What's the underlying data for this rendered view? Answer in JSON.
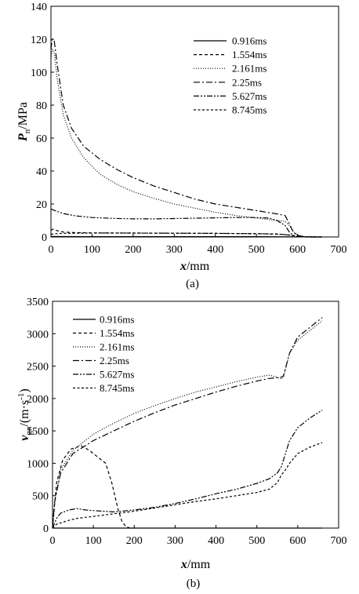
{
  "figure": {
    "panel_labels": [
      "(a)",
      "(b)"
    ]
  },
  "chart_data": [
    {
      "type": "line",
      "panel": "(a)",
      "xlabel_italic": "x",
      "xlabel_unit": "/mm",
      "ylabel_italic": "P",
      "ylabel_sub": "n",
      "ylabel_unit": "/MPa",
      "xlim": [
        0,
        700
      ],
      "ylim": [
        0,
        140
      ],
      "xticks": [
        0,
        100,
        200,
        300,
        400,
        500,
        600,
        700
      ],
      "yticks": [
        0,
        20,
        40,
        60,
        80,
        100,
        120,
        140
      ],
      "xtick_labels": [
        "0",
        "100",
        "200",
        "300",
        "400",
        "500",
        "600",
        "700"
      ],
      "ytick_labels": [
        "0",
        "20",
        "40",
        "60",
        "80",
        "100",
        "120",
        "140"
      ],
      "legend_position": "top-right",
      "grid": false,
      "series": [
        {
          "name": "0.916ms",
          "dash": "solid",
          "x": [
            0,
            100,
            200,
            300,
            400,
            500,
            600,
            660
          ],
          "y": [
            0.3,
            0.2,
            0.2,
            0.2,
            0.2,
            0.2,
            0.1,
            0
          ]
        },
        {
          "name": "1.554ms",
          "dash": "dash",
          "x": [
            0,
            5,
            15,
            30,
            60,
            100,
            200,
            300,
            400,
            500,
            560,
            590,
            610,
            660
          ],
          "y": [
            4,
            4.8,
            3.8,
            3,
            2.6,
            2.5,
            2.4,
            2.3,
            2.2,
            2,
            1.6,
            0.8,
            0.2,
            0
          ]
        },
        {
          "name": "2.161ms",
          "dash": "dot",
          "x": [
            0,
            3,
            8,
            15,
            30,
            50,
            80,
            120,
            160,
            200,
            250,
            300,
            350,
            400,
            450,
            500,
            550,
            570,
            580,
            590,
            600,
            620,
            660
          ],
          "y": [
            108,
            114,
            112,
            96,
            74,
            60,
            48,
            38,
            32,
            27.5,
            23.5,
            20,
            17.5,
            15,
            13,
            11.5,
            10,
            9.5,
            7,
            3,
            1,
            0,
            0
          ]
        },
        {
          "name": "2.25ms",
          "dash": "dashdot",
          "x": [
            0,
            3,
            8,
            15,
            30,
            50,
            80,
            120,
            160,
            200,
            250,
            300,
            350,
            400,
            450,
            500,
            550,
            570,
            580,
            590,
            600,
            620,
            660
          ],
          "y": [
            114,
            120,
            119,
            105,
            80,
            66,
            55,
            47,
            41,
            36,
            31,
            27,
            23,
            20,
            18,
            16,
            14,
            13,
            8,
            3,
            1,
            0,
            0
          ]
        },
        {
          "name": "5.627ms",
          "dash": "dashdotdot",
          "x": [
            0,
            10,
            30,
            60,
            100,
            150,
            200,
            250,
            300,
            350,
            400,
            450,
            500,
            530,
            550,
            570,
            580,
            590,
            600,
            620,
            660
          ],
          "y": [
            17,
            16,
            14.2,
            12.8,
            11.8,
            11.3,
            11,
            11,
            11.2,
            11.4,
            11.6,
            11.8,
            11.8,
            11.5,
            10,
            7,
            3,
            1,
            0.2,
            0,
            0
          ]
        },
        {
          "name": "8.745ms",
          "dash": "shortdash",
          "x": [
            0,
            10,
            30,
            60,
            100,
            200,
            300,
            400,
            500,
            550,
            580,
            600,
            620,
            660
          ],
          "y": [
            1.6,
            2,
            2.2,
            2.3,
            2.4,
            2.4,
            2.3,
            2.2,
            2,
            1.8,
            1.2,
            0.4,
            0.1,
            0
          ]
        }
      ]
    },
    {
      "type": "line",
      "panel": "(b)",
      "xlabel_italic": "x",
      "xlabel_unit": "/mm",
      "ylabel_italic": "v",
      "ylabel_sub": "gn",
      "ylabel_unit": "/(m·s",
      "ylabel_sup": "-1",
      "ylabel_close": ")",
      "xlim": [
        0,
        700
      ],
      "ylim": [
        0,
        3500
      ],
      "xticks": [
        0,
        100,
        200,
        300,
        400,
        500,
        600,
        700
      ],
      "yticks": [
        0,
        500,
        1000,
        1500,
        2000,
        2500,
        3000,
        3500
      ],
      "xtick_labels": [
        "0",
        "100",
        "200",
        "300",
        "400",
        "500",
        "600",
        "700"
      ],
      "ytick_labels": [
        "0",
        "500",
        "1000",
        "1500",
        "2000",
        "2500",
        "3000",
        "3500"
      ],
      "legend_position": "top-left",
      "grid": false,
      "series": [
        {
          "name": "0.916ms",
          "dash": "solid",
          "x": [
            0,
            100,
            200,
            300,
            400,
            500,
            600,
            660
          ],
          "y": [
            0,
            0,
            0,
            0,
            0,
            0,
            0,
            0
          ]
        },
        {
          "name": "1.554ms",
          "dash": "dash",
          "x": [
            0,
            10,
            25,
            45,
            70,
            90,
            110,
            130,
            145,
            160,
            170,
            180,
            190,
            200
          ],
          "y": [
            0,
            700,
            1050,
            1220,
            1270,
            1200,
            1100,
            1000,
            700,
            300,
            100,
            20,
            0,
            0
          ]
        },
        {
          "name": "2.161ms",
          "dash": "dot",
          "x": [
            0,
            5,
            20,
            50,
            100,
            150,
            200,
            250,
            300,
            350,
            400,
            450,
            500,
            530,
            550,
            560,
            565,
            580,
            600,
            620,
            640,
            660
          ],
          "y": [
            0,
            400,
            900,
            1200,
            1450,
            1620,
            1770,
            1890,
            2000,
            2100,
            2180,
            2260,
            2330,
            2360,
            2330,
            2300,
            2330,
            2700,
            2900,
            3000,
            3100,
            3200
          ]
        },
        {
          "name": "2.25ms",
          "dash": "dashdot",
          "x": [
            0,
            5,
            20,
            50,
            100,
            150,
            200,
            250,
            300,
            350,
            400,
            450,
            500,
            530,
            550,
            560,
            565,
            580,
            600,
            620,
            640,
            660
          ],
          "y": [
            0,
            400,
            850,
            1150,
            1350,
            1500,
            1650,
            1780,
            1900,
            2000,
            2100,
            2190,
            2270,
            2310,
            2320,
            2330,
            2350,
            2700,
            2950,
            3050,
            3150,
            3250
          ]
        },
        {
          "name": "5.627ms",
          "dash": "dashdotdot",
          "x": [
            0,
            10,
            20,
            40,
            60,
            80,
            100,
            150,
            200,
            250,
            300,
            350,
            400,
            450,
            500,
            530,
            550,
            560,
            570,
            580,
            600,
            630,
            660
          ],
          "y": [
            0,
            150,
            230,
            280,
            300,
            280,
            270,
            250,
            280,
            320,
            380,
            450,
            530,
            600,
            690,
            760,
            850,
            950,
            1150,
            1350,
            1550,
            1700,
            1820
          ]
        },
        {
          "name": "8.745ms",
          "dash": "shortdash",
          "x": [
            0,
            10,
            20,
            40,
            60,
            100,
            150,
            200,
            250,
            300,
            350,
            400,
            450,
            500,
            530,
            550,
            560,
            570,
            580,
            600,
            630,
            660
          ],
          "y": [
            0,
            60,
            80,
            120,
            150,
            180,
            220,
            260,
            310,
            360,
            410,
            450,
            500,
            550,
            600,
            700,
            820,
            900,
            1000,
            1150,
            1250,
            1320
          ]
        }
      ]
    }
  ]
}
